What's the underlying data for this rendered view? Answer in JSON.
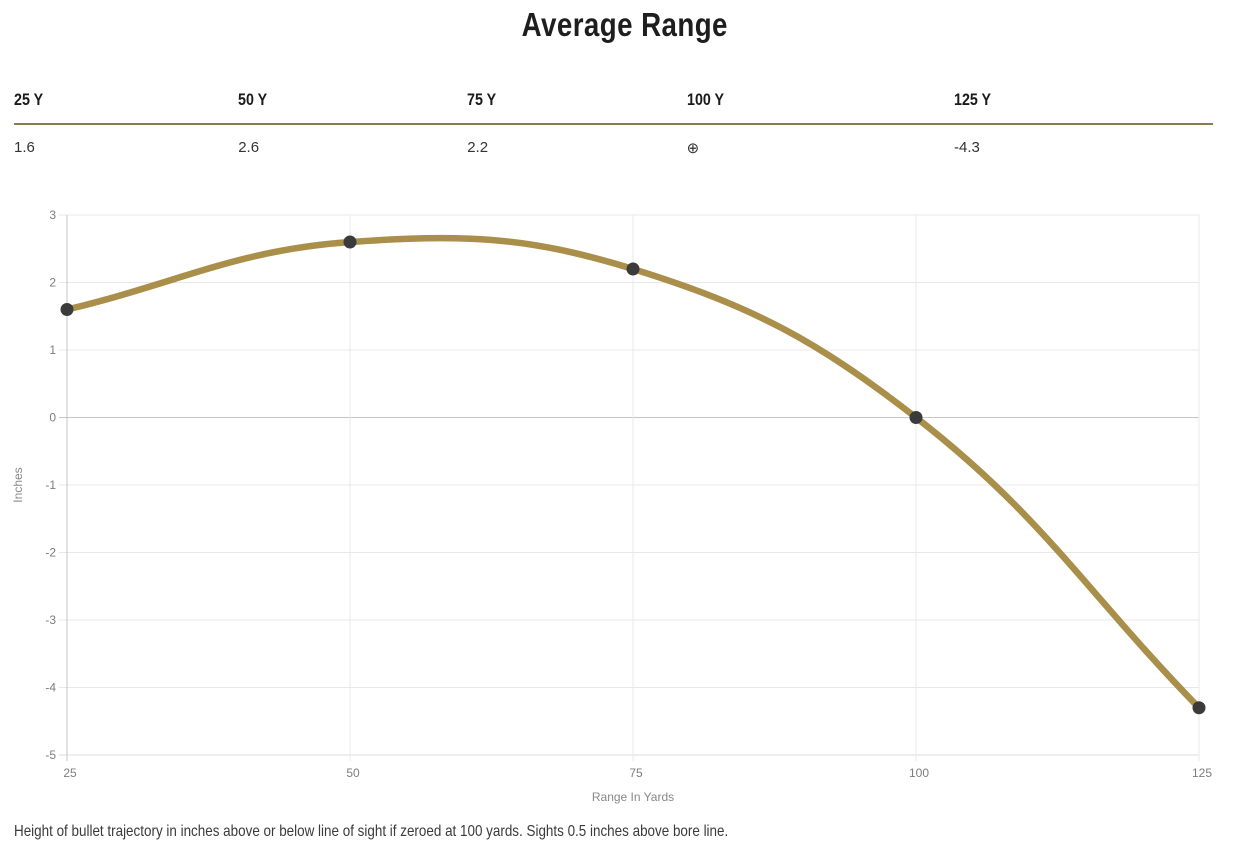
{
  "title": "Average Range",
  "table": {
    "headers": [
      "25 Y",
      "50 Y",
      "75 Y",
      "100 Y",
      "125 Y"
    ],
    "values": [
      "1.6",
      "2.6",
      "2.2",
      "⊕",
      "-4.3"
    ]
  },
  "chart_data": {
    "type": "line",
    "x": [
      25,
      50,
      75,
      100,
      125
    ],
    "values": [
      1.6,
      2.6,
      2.2,
      0,
      -4.3
    ],
    "x_tick_labels": [
      "25",
      "50",
      "75",
      "100",
      "125"
    ],
    "y_ticks": [
      3,
      2,
      1,
      0,
      -1,
      -2,
      -3,
      -4,
      -5
    ],
    "y_tick_labels": [
      "3",
      "2",
      "1",
      "0",
      "-1",
      "-2",
      "-3",
      "-4",
      "-5"
    ],
    "xlabel": "Range In Yards",
    "ylabel": "Inches",
    "xlim": [
      25,
      125
    ],
    "ylim": [
      -5,
      3
    ],
    "grid": true,
    "legend_position": "none",
    "line_color": "#a98f4a",
    "point_color": "#3b3b3b",
    "grid_color": "#e8e8e8",
    "zero_line_color": "#c6c6c6",
    "tick_label_color": "#7d7d7d"
  },
  "footnote": "Height of bullet trajectory in inches above or below line of sight if zeroed at 100 yards. Sights 0.5 inches above bore line.",
  "colors": {
    "accent": "#a98f4a",
    "table_divider": "#8c7b52"
  }
}
